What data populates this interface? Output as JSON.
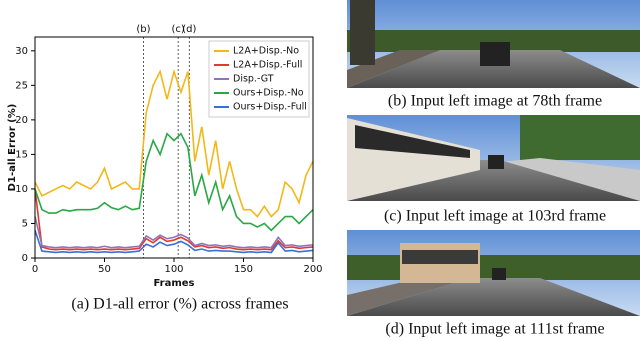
{
  "chart_data": {
    "type": "line",
    "ylabel": "D1-all Error (%)",
    "xlabel": "Frames",
    "caption": "(a) D1-all error (%) across frames",
    "xlim": [
      0,
      200
    ],
    "xticks": [
      0,
      50,
      100,
      150,
      200
    ],
    "ylim": [
      0,
      32
    ],
    "yticks": [
      0,
      5,
      10,
      15,
      20,
      25,
      30
    ],
    "legend": "upper right",
    "annotations": [
      {
        "x": 78,
        "label": "(b)"
      },
      {
        "x": 103,
        "label": "(c)"
      },
      {
        "x": 111,
        "label": "(d)"
      }
    ],
    "x": [
      0,
      5,
      10,
      15,
      20,
      25,
      30,
      35,
      40,
      45,
      50,
      55,
      60,
      65,
      70,
      75,
      80,
      85,
      90,
      95,
      100,
      105,
      110,
      115,
      120,
      125,
      130,
      135,
      140,
      145,
      150,
      155,
      160,
      165,
      170,
      175,
      180,
      185,
      190,
      195,
      200
    ],
    "series": [
      {
        "name": "L2A+Disp.-No",
        "color": "#f2b81a",
        "values": [
          11,
          9,
          9.5,
          10,
          10.5,
          10,
          11,
          10.5,
          10,
          11,
          13,
          10,
          10.5,
          11,
          10,
          10,
          21,
          25,
          27,
          23,
          27,
          24,
          27,
          14,
          19,
          12,
          17,
          10,
          14,
          10,
          7,
          7,
          6,
          7.5,
          6,
          7,
          11,
          10,
          8,
          12,
          14
        ]
      },
      {
        "name": "L2A+Disp.-Full",
        "color": "#e03a2f",
        "values": [
          10,
          1.6,
          1.3,
          1.2,
          1.3,
          1.2,
          1.3,
          1.2,
          1.3,
          1.2,
          1.3,
          1.2,
          1.3,
          1.2,
          1.3,
          1.4,
          2.8,
          2.2,
          3,
          2.4,
          2.6,
          3,
          2.5,
          1.6,
          1.8,
          1.5,
          1.6,
          1.4,
          1.5,
          1.3,
          1.2,
          1.3,
          1.2,
          1.3,
          1.2,
          2.5,
          1.5,
          1.6,
          1.4,
          1.5,
          1.6
        ]
      },
      {
        "name": "Disp.-GT",
        "color": "#8e74b8",
        "values": [
          6,
          1.8,
          1.6,
          1.5,
          1.6,
          1.5,
          1.6,
          1.5,
          1.6,
          1.5,
          1.7,
          1.5,
          1.6,
          1.5,
          1.6,
          1.7,
          3.2,
          2.6,
          3.3,
          2.8,
          3,
          3.4,
          2.9,
          1.8,
          2.1,
          1.8,
          1.9,
          1.7,
          1.8,
          1.6,
          1.5,
          1.6,
          1.5,
          1.6,
          1.5,
          3,
          1.8,
          1.9,
          1.7,
          1.8,
          1.9
        ]
      },
      {
        "name": "Ours+Disp.-No",
        "color": "#2aa844",
        "values": [
          10,
          7,
          6.5,
          6.5,
          7,
          6.8,
          7,
          7,
          7,
          7.2,
          8,
          7.3,
          7,
          7.5,
          7,
          7.2,
          14,
          17,
          15,
          18,
          17,
          18,
          16,
          9,
          12,
          8,
          11,
          7,
          9,
          6,
          5,
          5,
          4.5,
          5,
          4,
          5,
          6,
          6,
          5,
          6,
          7
        ]
      },
      {
        "name": "Ours+Disp.-Full",
        "color": "#3b6fd6",
        "values": [
          4,
          1,
          0.9,
          0.8,
          0.9,
          0.8,
          0.9,
          0.8,
          0.9,
          0.8,
          0.9,
          0.8,
          0.9,
          0.8,
          0.9,
          1,
          2,
          1.6,
          2.3,
          1.8,
          2,
          2.4,
          1.9,
          1.1,
          1.3,
          1,
          1.1,
          1,
          1,
          0.9,
          0.8,
          0.9,
          0.8,
          0.9,
          0.8,
          2.2,
          1,
          1.1,
          0.9,
          1,
          1.1
        ]
      }
    ]
  },
  "images": [
    {
      "caption": "(b) Input left image at 78th frame"
    },
    {
      "caption": "(c) Input left image at 103rd frame"
    },
    {
      "caption": "(d) Input left image at 111st frame"
    }
  ]
}
